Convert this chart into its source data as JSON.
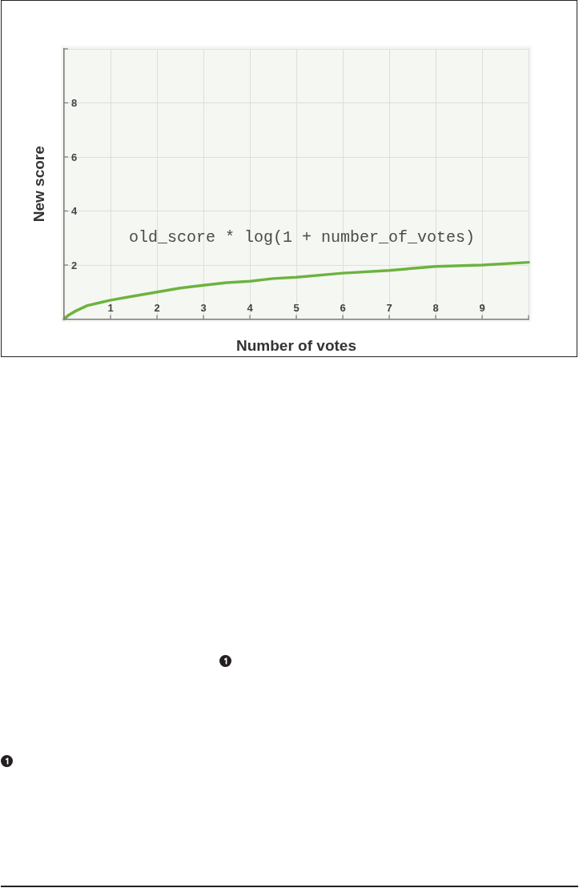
{
  "chart_data": {
    "type": "line",
    "xlabel": "Number of votes",
    "ylabel": "New score",
    "annotations": [
      "old_score * log(1 + number_of_votes)"
    ],
    "x": [
      0,
      0.1,
      0.25,
      0.5,
      0.75,
      1,
      1.5,
      2,
      2.5,
      3,
      3.5,
      4,
      4.5,
      5,
      6,
      7,
      8,
      9,
      10
    ],
    "series": [
      {
        "color": "#6cb33e",
        "values": [
          0,
          0.15,
          0.3,
          0.5,
          0.6,
          0.7,
          0.85,
          1.0,
          1.15,
          1.25,
          1.35,
          1.4,
          1.5,
          1.55,
          1.7,
          1.8,
          1.95,
          2.0,
          2.1
        ]
      }
    ],
    "xlim": [
      0,
      10
    ],
    "ylim": [
      0,
      10
    ],
    "xticks": [
      {
        "value": 0,
        "label": null
      },
      1,
      2,
      3,
      4,
      5,
      6,
      7,
      8,
      9,
      {
        "value": 10,
        "label": null
      }
    ],
    "yticks": [
      {
        "value": 0,
        "label": null
      },
      2,
      4,
      6,
      8,
      {
        "value": 10,
        "label": null
      }
    ],
    "grid": true,
    "legend": false,
    "marker": "none",
    "line_style": "solid"
  }
}
